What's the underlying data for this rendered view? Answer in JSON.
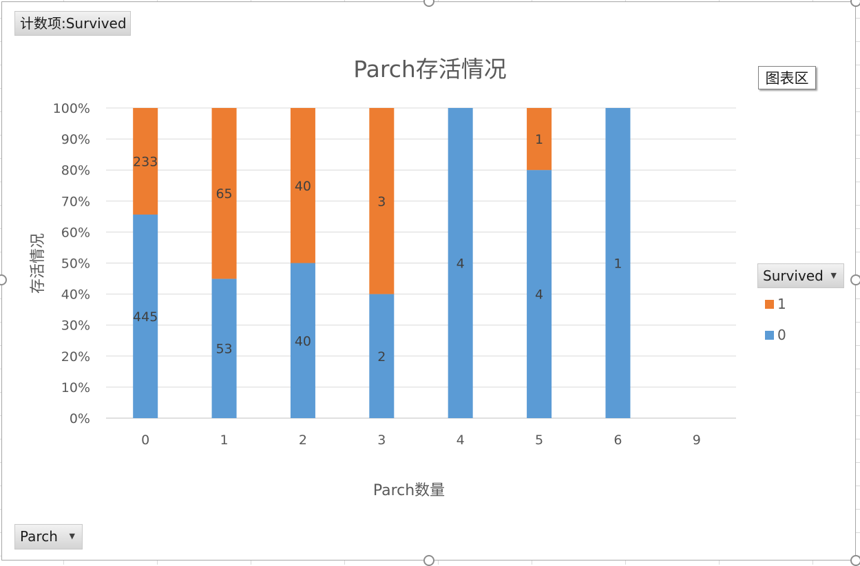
{
  "value_field_label": "计数项:Survived",
  "chart_area_label": "图表区",
  "legend_field_label": "Survived",
  "axis_field_label": "Parch",
  "colors": {
    "survived_1": "#ed7d31",
    "survived_0": "#5b9bd5"
  },
  "chart_data": {
    "type": "bar",
    "stacking": "percent",
    "title": "Parch存活情况",
    "xlabel": "Parch数量",
    "ylabel": "存活情况",
    "categories": [
      "0",
      "1",
      "2",
      "3",
      "4",
      "5",
      "6",
      "9"
    ],
    "series": [
      {
        "name": "0",
        "values": [
          445,
          53,
          40,
          2,
          4,
          4,
          1,
          null
        ]
      },
      {
        "name": "1",
        "values": [
          233,
          65,
          40,
          3,
          null,
          1,
          null,
          null
        ]
      }
    ],
    "ylim": [
      0,
      100
    ],
    "yticks": [
      "0%",
      "10%",
      "20%",
      "30%",
      "40%",
      "50%",
      "60%",
      "70%",
      "80%",
      "90%",
      "100%"
    ],
    "grid": true,
    "legend_position": "right",
    "data_labels": true
  }
}
